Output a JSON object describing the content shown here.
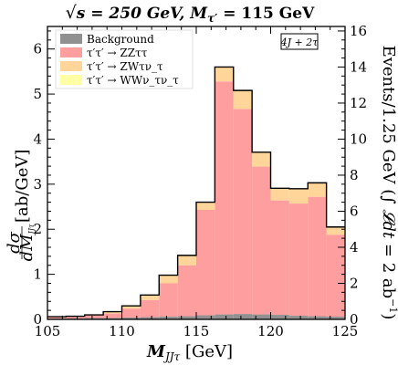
{
  "chart_data": {
    "type": "bar",
    "stacked": true,
    "title": "√s = 250 GeV, M_τ′ = 115 GeV",
    "title_parts": {
      "sqrt": "√",
      "s_eq": "s = 250 GeV, M",
      "sub": "τ′",
      "tail": " = 115 GeV"
    },
    "xlabel": "M_JJτ [GeV]",
    "xlabel_parts": {
      "main": "M",
      "sub": "JJτ",
      "unit": " [GeV]"
    },
    "ylabel": "dσ/dM_JJτ [ab/GeV]",
    "ylabel_parts": {
      "num": "dσ",
      "den": "dM",
      "den_sub": "JJτ",
      "unit": " [ab/GeV]"
    },
    "y2label": "Events/1.25 GeV (∫ 𝓛dt = 2 ab⁻¹)",
    "y2label_parts": {
      "main": "Events/1.25 GeV (∫ ",
      "lum": "𝓛dt",
      "tail": " = 2 ab",
      "sup": "−1",
      "close": ")"
    },
    "tag": "4J + 2τ",
    "xlim": [
      105,
      125
    ],
    "ylim": [
      0,
      6.5
    ],
    "y2lim": [
      0,
      16.25
    ],
    "x_ticks": [
      105,
      110,
      115,
      120,
      125
    ],
    "y_ticks": [
      0,
      1,
      2,
      3,
      4,
      5,
      6
    ],
    "y2_ticks": [
      0,
      2,
      4,
      6,
      8,
      10,
      12,
      14,
      16
    ],
    "bin_edges": [
      105,
      106.25,
      107.5,
      108.75,
      110,
      111.25,
      112.5,
      113.75,
      115,
      116.25,
      117.5,
      118.75,
      120,
      121.25,
      122.5,
      123.75,
      125
    ],
    "legend_position": "top-left",
    "series": [
      {
        "name": "Background",
        "color": "#909090",
        "values": [
          0.02,
          0.02,
          0.03,
          0.03,
          0.04,
          0.05,
          0.06,
          0.07,
          0.09,
          0.11,
          0.12,
          0.11,
          0.1,
          0.08,
          0.07,
          0.06
        ]
      },
      {
        "name": "τ′τ′ → ZZττ",
        "color": "#FF9E9E",
        "values": [
          0.03,
          0.04,
          0.06,
          0.1,
          0.2,
          0.38,
          0.74,
          1.13,
          2.34,
          5.17,
          4.55,
          3.28,
          2.54,
          2.49,
          2.65,
          1.82
        ]
      },
      {
        "name": "τ′τ′ → ZWτν_τ",
        "color": "#FFD59A",
        "values": [
          0.01,
          0.01,
          0.01,
          0.04,
          0.06,
          0.11,
          0.18,
          0.22,
          0.17,
          0.32,
          0.41,
          0.32,
          0.27,
          0.33,
          0.31,
          0.17
        ]
      },
      {
        "name": "τ′τ′ → WWν_τν_τ",
        "color": "#FFFFA3",
        "values": [
          0,
          0,
          0,
          0,
          0,
          0,
          0,
          0,
          0,
          0,
          0,
          0,
          0,
          0,
          0,
          0
        ]
      }
    ],
    "totals": [
      0.06,
      0.07,
      0.1,
      0.17,
      0.3,
      0.54,
      0.98,
      1.42,
      2.6,
      5.6,
      5.08,
      3.71,
      2.91,
      2.9,
      3.03,
      2.05
    ]
  }
}
